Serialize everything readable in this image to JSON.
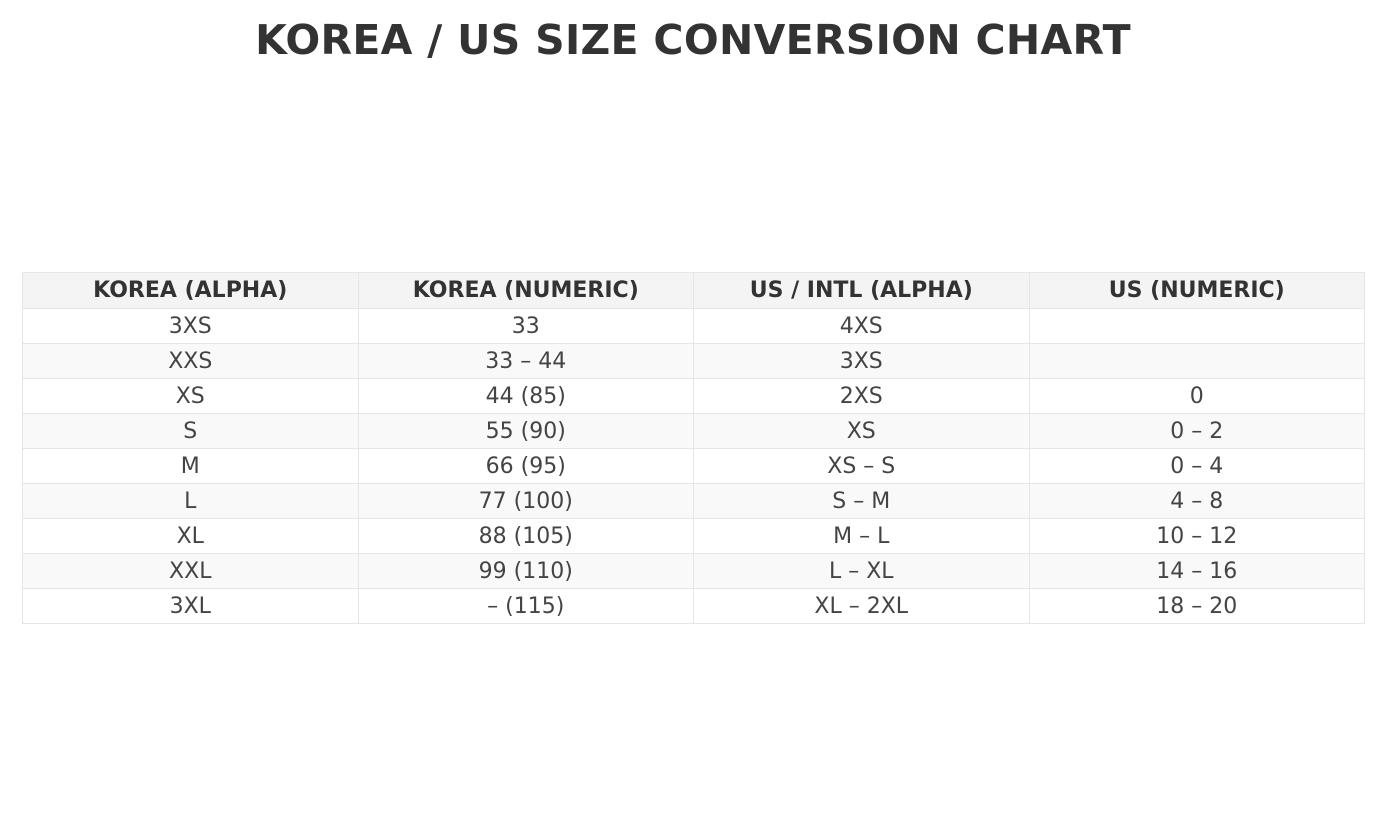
{
  "chart_data": {
    "type": "table",
    "title": "KOREA / US SIZE CONVERSION CHART",
    "columns": [
      "KOREA (ALPHA)",
      "KOREA (NUMERIC)",
      "US / INTL (ALPHA)",
      "US (NUMERIC)"
    ],
    "rows": [
      [
        "3XS",
        "33",
        "4XS",
        ""
      ],
      [
        "XXS",
        "33 – 44",
        "3XS",
        ""
      ],
      [
        "XS",
        "44 (85)",
        "2XS",
        "0"
      ],
      [
        "S",
        "55 (90)",
        "XS",
        "0 – 2"
      ],
      [
        "M",
        "66 (95)",
        "XS – S",
        "0 – 4"
      ],
      [
        "L",
        "77 (100)",
        "S – M",
        "4 – 8"
      ],
      [
        "XL",
        "88 (105)",
        "M – L",
        "10 – 12"
      ],
      [
        "XXL",
        "99 (110)",
        "L – XL",
        "14 – 16"
      ],
      [
        "3XL",
        "– (115)",
        "XL – 2XL",
        "18 – 20"
      ]
    ],
    "colors": {
      "header_bg": "#f4f4f4",
      "stripe_bg": "#f9f9f9",
      "border": "#e6e6e6",
      "text": "#444444",
      "title": "#333333"
    }
  }
}
